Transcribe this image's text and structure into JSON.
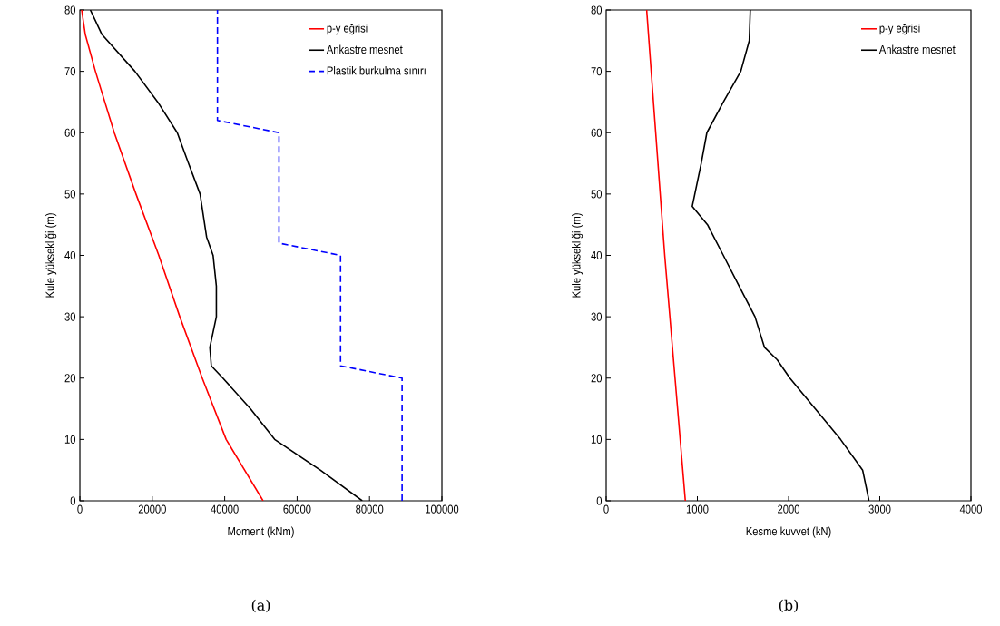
{
  "chart_data": [
    {
      "type": "line",
      "xlabel": "Moment (kNm)",
      "ylabel": "Kule yüksekliği (m)",
      "xlim": [
        0,
        100000
      ],
      "ylim": [
        0,
        80
      ],
      "xticks": [
        0,
        20000,
        40000,
        60000,
        80000,
        100000
      ],
      "yticks": [
        0,
        10,
        20,
        30,
        40,
        50,
        60,
        70,
        80
      ],
      "legend": "top right",
      "marker": "none",
      "annotations": [
        "(a)"
      ],
      "series": [
        {
          "name": "p-y eğrisi",
          "color": "#ff0000",
          "line_style": "solid",
          "x": [
            50600,
            40400,
            33800,
            27600,
            21800,
            15500,
            9500,
            4300,
            1500,
            500
          ],
          "values": [
            0,
            10,
            20,
            30,
            40,
            50,
            60,
            70,
            76,
            80
          ]
        },
        {
          "name": "Ankastre mesnet",
          "color": "#000000",
          "line_style": "solid",
          "x": [
            78000,
            66400,
            53800,
            47100,
            39500,
            36300,
            35900,
            37700,
            37700,
            36800,
            35000,
            33200,
            30000,
            26900,
            21500,
            15200,
            6100,
            2900
          ],
          "values": [
            0,
            5,
            10,
            15,
            20,
            22,
            25,
            30,
            35,
            40,
            43,
            50,
            55,
            60,
            65,
            70,
            76,
            80
          ]
        },
        {
          "name": "Plastik burkulma sınırı",
          "color": "#0000ff",
          "line_style": "dashed",
          "x": [
            89000,
            89000,
            72000,
            72000,
            55000,
            55000,
            38000,
            38000
          ],
          "values": [
            0,
            20,
            22,
            40,
            42,
            60,
            62,
            80
          ]
        }
      ]
    },
    {
      "type": "line",
      "xlabel": "Kesme kuvvet (kN)",
      "ylabel": "Kule yüksekliği (m)",
      "xlim": [
        0,
        4000
      ],
      "ylim": [
        0,
        80
      ],
      "xticks": [
        0,
        1000,
        2000,
        3000,
        4000
      ],
      "yticks": [
        0,
        10,
        20,
        30,
        40,
        50,
        60,
        70,
        80
      ],
      "legend": "top right",
      "marker": "none",
      "annotations": [
        "(b)"
      ],
      "series": [
        {
          "name": "p-y eğrisi",
          "color": "#ff0000",
          "line_style": "solid",
          "x": [
            868,
            755,
            642,
            543,
            444
          ],
          "values": [
            0,
            20,
            40,
            60,
            80
          ]
        },
        {
          "name": "Ankastre mesnet",
          "color": "#000000",
          "line_style": "solid",
          "x": [
            2882,
            2812,
            2570,
            2292,
            2014,
            1875,
            1736,
            1632,
            1458,
            1285,
            1111,
            944,
            972,
            1042,
            1104,
            1285,
            1476,
            1569,
            1580
          ],
          "values": [
            0,
            5,
            10,
            15,
            20,
            23,
            25,
            30,
            35,
            40,
            45,
            48,
            50,
            55,
            60,
            65,
            70,
            75,
            80
          ]
        }
      ]
    }
  ]
}
